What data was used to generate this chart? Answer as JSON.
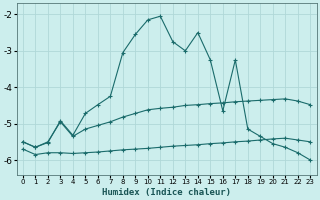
{
  "xlabel": "Humidex (Indice chaleur)",
  "background_color": "#cceeed",
  "grid_color": "#b0d8d8",
  "line_color": "#1a6b6b",
  "xlim": [
    -0.5,
    23.5
  ],
  "ylim": [
    -6.4,
    -1.7
  ],
  "yticks": [
    -6,
    -5,
    -4,
    -3,
    -2
  ],
  "xticks": [
    0,
    1,
    2,
    3,
    4,
    5,
    6,
    7,
    8,
    9,
    10,
    11,
    12,
    13,
    14,
    15,
    16,
    17,
    18,
    19,
    20,
    21,
    22,
    23
  ],
  "line1_x": [
    0,
    1,
    2,
    3,
    4,
    5,
    6,
    7,
    8,
    9,
    10,
    11,
    12,
    13,
    14,
    15,
    16,
    17,
    18,
    19,
    20,
    21,
    22,
    23
  ],
  "line1_y": [
    -5.7,
    -5.85,
    -5.8,
    -5.8,
    -5.82,
    -5.8,
    -5.78,
    -5.75,
    -5.72,
    -5.7,
    -5.68,
    -5.65,
    -5.62,
    -5.6,
    -5.58,
    -5.55,
    -5.53,
    -5.5,
    -5.48,
    -5.45,
    -5.42,
    -5.4,
    -5.45,
    -5.5
  ],
  "line2_x": [
    0,
    1,
    2,
    3,
    4,
    5,
    6,
    7,
    8,
    9,
    10,
    11,
    12,
    13,
    14,
    15,
    16,
    17,
    18,
    19,
    20,
    21,
    22,
    23
  ],
  "line2_y": [
    -5.5,
    -5.65,
    -5.5,
    -4.95,
    -5.35,
    -5.15,
    -5.05,
    -4.95,
    -4.82,
    -4.72,
    -4.62,
    -4.58,
    -4.55,
    -4.5,
    -4.48,
    -4.45,
    -4.43,
    -4.4,
    -4.38,
    -4.36,
    -4.34,
    -4.32,
    -4.38,
    -4.48
  ],
  "line3_x": [
    0,
    1,
    2,
    3,
    4,
    5,
    6,
    7,
    8,
    9,
    10,
    11,
    12,
    13,
    14,
    15,
    16,
    17,
    18,
    19,
    20,
    21,
    22,
    23
  ],
  "line3_y": [
    -5.5,
    -5.65,
    -5.52,
    -4.92,
    -5.32,
    -4.72,
    -4.48,
    -4.25,
    -3.05,
    -2.55,
    -2.15,
    -2.05,
    -2.75,
    -3.0,
    -2.5,
    -3.25,
    -4.65,
    -3.25,
    -5.15,
    -5.35,
    -5.55,
    -5.65,
    -5.8,
    -6.0
  ]
}
